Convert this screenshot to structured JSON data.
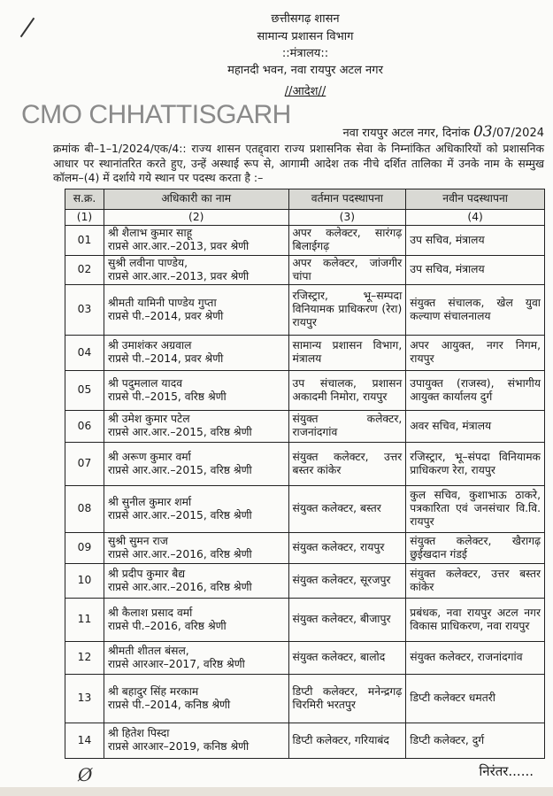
{
  "header": {
    "line1": "छत्तीसगढ़ शासन",
    "line2": "सामान्य प्रशासन विभाग",
    "line3": "::मंत्रालय::",
    "line4": "महानदी भवन, नवा रायपुर अटल नगर",
    "order_title": "//आदेश//"
  },
  "watermark": "CMO CHHATTISGARH",
  "date_line": {
    "place": "नवा रायपुर अटल नगर, दिनांक",
    "day": "03",
    "rest": "/07/2024"
  },
  "intro": "क्रमांक बी–1–1/2024/एक/4:: राज्य शासन एतद्द्वारा राज्य प्रशासनिक सेवा के निम्नांकित अधिकारियों को प्रशासनिक आधार पर स्थानांतरित करते हुए, उन्हें अस्थाई रूप से, आगामी आदेश तक नीचे दर्शित तालिका में उनके नाम के सम्मुख कॉलम–(4) में दर्शाये गये स्थान पर पदस्थ करता है :–",
  "table": {
    "headers": [
      "स.क्र.",
      "अधिकारी का नाम",
      "वर्तमान पदस्थापना",
      "नवीन पदस्थापना"
    ],
    "col_numbers": [
      "(1)",
      "(2)",
      "(3)",
      "(4)"
    ],
    "rows": [
      {
        "no": "01",
        "name": "श्री शैलाभ कुमार साहू",
        "service": "राप्रसे आर.आर.–2013, प्रवर श्रेणी",
        "current": "अपर कलेक्टर, सारंगढ़ बिलाईगढ़",
        "new": "उप सचिव, मंत्रालय"
      },
      {
        "no": "02",
        "name": "सुश्री लवीना पाण्डेय,",
        "service": "राप्रसे आर.आर.–2013, प्रवर श्रेणी",
        "current": "अपर कलेक्टर, जांजगीर चांपा",
        "new": "उप सचिव, मंत्रालय"
      },
      {
        "no": "03",
        "name": "श्रीमती यामिनी पाण्डेय गुप्ता",
        "service": "राप्रसे पी.–2014, प्रवर श्रेणी",
        "current": "रजिस्ट्रार, भू–सम्पदा विनियामक प्राधिकरण (रेरा) रायपुर",
        "new": "संयुक्त संचालक, खेल युवा कल्याण संचालनालय"
      },
      {
        "no": "04",
        "name": "श्री उमाशंकर अग्रवाल",
        "service": "राप्रसे पी.–2014, प्रवर श्रेणी",
        "current": "सामान्य प्रशासन विभाग, मंत्रालय",
        "new": "अपर आयुक्त, नगर निगम, रायपुर"
      },
      {
        "no": "05",
        "name": "श्री पदुमलाल यादव",
        "service": "राप्रसे पी.–2015, वरिष्ठ श्रेणी",
        "current": "उप संचालक, प्रशासन अकादमी निमोरा, रायपुर",
        "new": "उपायुक्त (राजस्व), संभागीय आयुक्त कार्यालय दुर्ग"
      },
      {
        "no": "06",
        "name": "श्री उमेश कुमार पटेल",
        "service": "राप्रसे आर.आर.–2015, वरिष्ठ श्रेणी",
        "current": "संयुक्त कलेक्टर, राजनांदगांव",
        "new": "अवर सचिव, मंत्रालय"
      },
      {
        "no": "07",
        "name": "श्री अरूण कुमार वर्मा",
        "service": "राप्रसे आर.आर.–2015, वरिष्ठ श्रेणी",
        "current": "संयुक्त कलेक्टर, उत्तर बस्तर कांकेर",
        "new": "रजिस्ट्रार, भू–संपदा विनियामक प्राधिकरण रेरा, रायपुर"
      },
      {
        "no": "08",
        "name": "श्री सुनील कुमार शर्मा",
        "service": "राप्रसे आर.आर.–2015, वरिष्ठ श्रेणी",
        "current": "संयुक्त कलेक्टर, बस्तर",
        "new": "कुल सचिव, कुशाभाऊ ठाकरे, पत्रकारिता एवं जनसंचार वि.वि. रायपुर"
      },
      {
        "no": "09",
        "name": "सुश्री सुमन राज",
        "service": "राप्रसे आर.आर.–2016, वरिष्ठ श्रेणी",
        "current": "संयुक्त कलेक्टर, रायपुर",
        "new": "संयुक्त कलेक्टर, खैरागढ़ छुईखदान गंडई"
      },
      {
        "no": "10",
        "name": "श्री प्रदीप कुमार बैद्य",
        "service": "राप्रसे आर.आर.–2016, वरिष्ठ श्रेणी",
        "current": "संयुक्त कलेक्टर, सूरजपुर",
        "new": "संयुक्त कलेक्टर, उत्तर बस्तर कांकेर"
      },
      {
        "no": "11",
        "name": "श्री कैलाश प्रसाद वर्मा",
        "service": "राप्रसे पी.–2016, वरिष्ठ श्रेणी",
        "current": "संयुक्त कलेक्टर, बीजापुर",
        "new": "प्रबंधक, नवा रायपुर अटल नगर विकास प्राधिकरण, नवा रायपुर"
      },
      {
        "no": "12",
        "name": "श्रीमती शीतल बंसल,",
        "service": "राप्रसे आरआर–2017, वरिष्ठ श्रेणी",
        "current": "संयुक्त कलेक्टर, बालोद",
        "new": "संयुक्त कलेक्टर, राजनांदगांव"
      },
      {
        "no": "13",
        "name": "श्री बहादुर सिंह मरकाम",
        "service": "राप्रसे पी.–2014, कनिष्ठ श्रेणी",
        "current": "डिप्टी कलेक्टर, मनेन्द्रगढ़ चिरमिरी भरतपुर",
        "new": "डिप्टी कलेक्टर धमतरी"
      },
      {
        "no": "14",
        "name": "श्री हितेश पिस्दा",
        "service": "राप्रसे आरआर–2019, कनिष्ठ श्रेणी",
        "current": "डिप्टी कलेक्टर, गरियाबंद",
        "new": "डिप्टी कलेक्टर, दुर्ग"
      }
    ]
  },
  "footer": {
    "continued": "निरंतर......"
  }
}
